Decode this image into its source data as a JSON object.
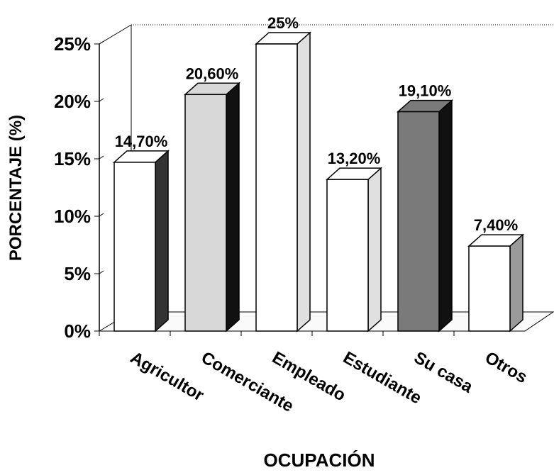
{
  "chart_data": {
    "type": "bar3d",
    "categories": [
      "Agricultor",
      "Comerciante",
      "Empleado",
      "Estudiante",
      "Su casa",
      "Otros"
    ],
    "values": [
      14.7,
      20.6,
      25,
      13.2,
      19.1,
      7.4
    ],
    "value_labels": [
      "14,70%",
      "20,60%",
      "25%",
      "13,20%",
      "19,10%",
      "7,40%"
    ],
    "colors": [
      "#ffffff",
      "#d8d8d8",
      "#ffffff",
      "#ffffff",
      "#7a7a7a",
      "#ffffff"
    ],
    "side_colors": [
      "#333333",
      "#111111",
      "#e0e0e0",
      "#e0e0e0",
      "#111111",
      "#9a9a9a"
    ],
    "ylim": [
      0,
      25
    ],
    "yticks": [
      {
        "value": 0,
        "label": "0%"
      },
      {
        "value": 5,
        "label": "5%"
      },
      {
        "value": 10,
        "label": "10%"
      },
      {
        "value": 15,
        "label": "15%"
      },
      {
        "value": 20,
        "label": "20%"
      },
      {
        "value": 25,
        "label": "25%"
      }
    ],
    "y_label": "PORCENTAJE (%)",
    "x_label": "OCUPACIÓN"
  }
}
